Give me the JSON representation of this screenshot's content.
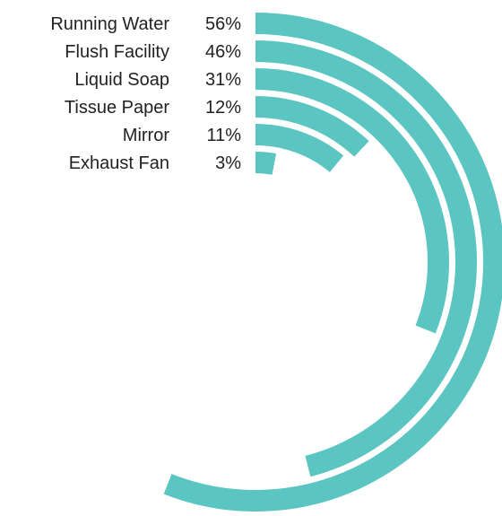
{
  "chart_data": {
    "type": "radial-bar",
    "title": "",
    "max": 100,
    "color": "#5bc5c1",
    "background": "#ffffff",
    "categories": [
      "Running Water",
      "Flush Facility",
      "Liquid Soap",
      "Tissue Paper",
      "Mirror",
      "Exhaust Fan"
    ],
    "values": [
      56,
      46,
      31,
      12,
      11,
      3
    ],
    "value_labels": [
      "56%",
      "46%",
      "31%",
      "12%",
      "11%",
      "3%"
    ]
  }
}
